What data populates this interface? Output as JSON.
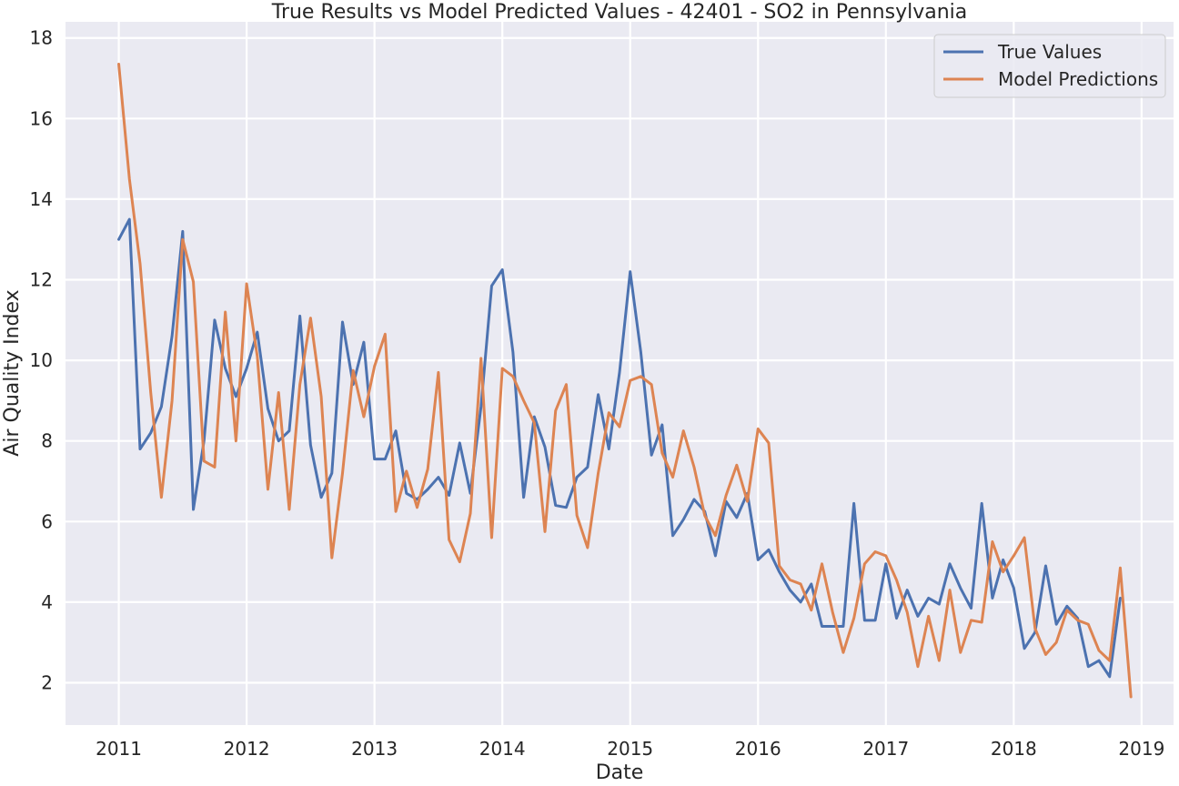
{
  "chart_data": {
    "type": "line",
    "title": "True Results vs Model Predicted Values - 42401 - SO2 in Pennsylvania",
    "xlabel": "Date",
    "ylabel": "Air Quality Index",
    "x_start": "2011-01",
    "x_frequency": "monthly",
    "xlim": [
      "2010-08",
      "2019-04"
    ],
    "ylim": [
      0.95,
      18.4
    ],
    "xticks": [
      "2011",
      "2012",
      "2013",
      "2014",
      "2015",
      "2016",
      "2017",
      "2018",
      "2019"
    ],
    "yticks": [
      "2",
      "4",
      "6",
      "8",
      "10",
      "12",
      "14",
      "16",
      "18"
    ],
    "grid": true,
    "background": "#EAEAF2",
    "legend_position": "top-right",
    "series": [
      {
        "name": "True Values",
        "color": "#4C72B0",
        "values": [
          13.0,
          13.5,
          7.8,
          8.2,
          8.85,
          10.6,
          13.2,
          6.3,
          8.0,
          11.0,
          9.8,
          9.1,
          9.8,
          10.7,
          8.8,
          8.0,
          8.25,
          11.1,
          7.9,
          6.6,
          7.2,
          10.95,
          9.4,
          10.45,
          7.55,
          7.55,
          8.25,
          6.7,
          6.55,
          6.8,
          7.1,
          6.65,
          7.95,
          6.7,
          8.85,
          11.85,
          12.25,
          10.2,
          6.6,
          8.6,
          7.85,
          6.4,
          6.35,
          7.1,
          7.35,
          9.15,
          7.8,
          9.7,
          12.2,
          10.2,
          7.65,
          8.4,
          5.65,
          6.05,
          6.55,
          6.25,
          5.15,
          6.5,
          6.1,
          6.7,
          5.05,
          5.3,
          4.75,
          4.3,
          4.0,
          4.45,
          3.4,
          3.4,
          3.4,
          6.45,
          3.55,
          3.55,
          4.95,
          3.6,
          4.3,
          3.65,
          4.1,
          3.95,
          4.95,
          4.35,
          3.85,
          6.45,
          4.1,
          5.05,
          4.35,
          2.85,
          3.25,
          4.9,
          3.45,
          3.9,
          3.6,
          2.4,
          2.55,
          2.15,
          4.1
        ],
        "description": "monthly values, 2011-01 to 2018-11"
      },
      {
        "name": "Model Predictions",
        "color": "#DD8452",
        "values": [
          17.35,
          14.5,
          12.4,
          9.2,
          6.6,
          9.0,
          13.0,
          11.95,
          7.5,
          7.35,
          11.2,
          8.0,
          11.9,
          10.1,
          6.8,
          9.2,
          6.3,
          9.4,
          11.05,
          9.1,
          5.1,
          7.2,
          9.75,
          8.6,
          9.85,
          10.65,
          6.25,
          7.25,
          6.35,
          7.3,
          9.7,
          5.55,
          5.0,
          6.2,
          10.05,
          5.6,
          9.8,
          9.6,
          9.0,
          8.45,
          5.75,
          8.75,
          9.4,
          6.15,
          5.35,
          7.2,
          8.7,
          8.35,
          9.5,
          9.6,
          9.4,
          7.7,
          7.1,
          8.25,
          7.35,
          6.15,
          5.65,
          6.65,
          7.4,
          6.5,
          8.3,
          7.95,
          4.9,
          4.55,
          4.45,
          3.8,
          4.95,
          3.75,
          2.75,
          3.6,
          4.95,
          5.25,
          5.15,
          4.55,
          3.75,
          2.4,
          3.65,
          2.55,
          4.3,
          2.75,
          3.55,
          3.5,
          5.5,
          4.75,
          5.15,
          5.6,
          3.35,
          2.7,
          3.0,
          3.8,
          3.55,
          3.45,
          2.8,
          2.55,
          4.85,
          1.65
        ],
        "description": "monthly values, 2011-01 to 2018-12"
      }
    ]
  }
}
